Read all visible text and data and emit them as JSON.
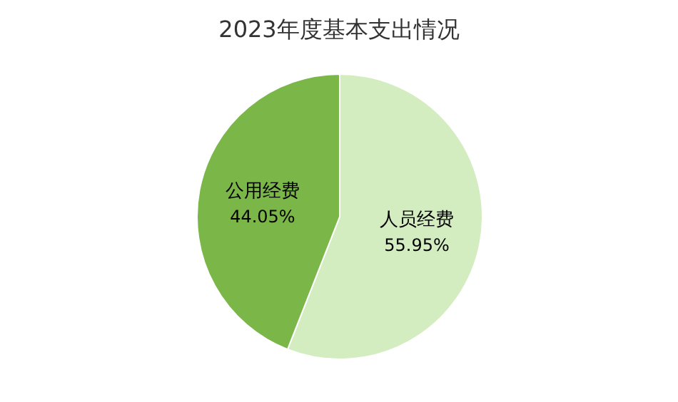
{
  "chart_data": {
    "type": "pie",
    "title": "2023年度基本支出情况",
    "categories": [
      "人员经费",
      "公用经费"
    ],
    "values": [
      55.95,
      44.05
    ],
    "colors": [
      "#d3ecc0",
      "#7ab648"
    ],
    "value_labels": [
      "55.95%",
      "44.05%"
    ]
  }
}
